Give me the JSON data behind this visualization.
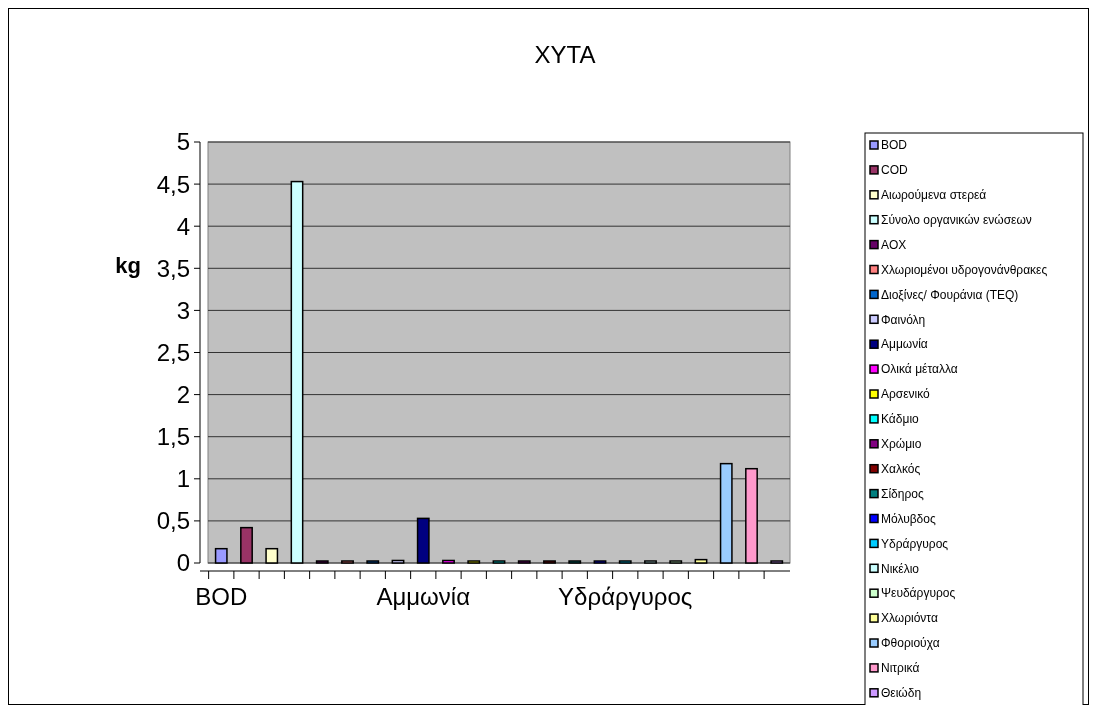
{
  "chart_data": {
    "type": "bar",
    "title": "ΧΥΤΑ",
    "ylabel": "kg",
    "categories": [
      "BOD",
      null,
      null,
      null,
      null,
      null,
      null,
      null,
      "Αμμωνία",
      null,
      null,
      null,
      null,
      null,
      null,
      null,
      "Υδράργυρος",
      null,
      null,
      null,
      null,
      null,
      null
    ],
    "series": [
      {
        "name": "BOD",
        "color": "#9999ff",
        "values": [
          0.17,
          null,
          null,
          null,
          null,
          null,
          null,
          null,
          null,
          null,
          null,
          null,
          null,
          null,
          null,
          null,
          null,
          null,
          null,
          null,
          null,
          null,
          null
        ]
      },
      {
        "name": "COD",
        "color": "#993366",
        "values": [
          null,
          0.42,
          null,
          null,
          null,
          null,
          null,
          null,
          null,
          null,
          null,
          null,
          null,
          null,
          null,
          null,
          null,
          null,
          null,
          null,
          null,
          null,
          null
        ]
      },
      {
        "name": "Αιωρούμενα στερεά",
        "color": "#ffffcc",
        "values": [
          null,
          null,
          0.17,
          null,
          null,
          null,
          null,
          null,
          null,
          null,
          null,
          null,
          null,
          null,
          null,
          null,
          null,
          null,
          null,
          null,
          null,
          null,
          null
        ]
      },
      {
        "name": "Σύνολο οργανικών ενώσεων",
        "color": "#ccffff",
        "values": [
          null,
          null,
          null,
          4.53,
          null,
          null,
          null,
          null,
          null,
          null,
          null,
          null,
          null,
          null,
          null,
          null,
          null,
          null,
          null,
          null,
          null,
          null,
          null
        ]
      },
      {
        "name": "AOX",
        "color": "#660066",
        "values": [
          null,
          null,
          null,
          null,
          0,
          null,
          null,
          null,
          null,
          null,
          null,
          null,
          null,
          null,
          null,
          null,
          null,
          null,
          null,
          null,
          null,
          null,
          null
        ]
      },
      {
        "name": "Χλωριομένοι υδρογονάνθρακες",
        "color": "#ff8080",
        "values": [
          null,
          null,
          null,
          null,
          null,
          0,
          null,
          null,
          null,
          null,
          null,
          null,
          null,
          null,
          null,
          null,
          null,
          null,
          null,
          null,
          null,
          null,
          null
        ]
      },
      {
        "name": "Διοξίνες/ Φουράνια (TEQ)",
        "color": "#0066cc",
        "values": [
          null,
          null,
          null,
          null,
          null,
          null,
          0,
          null,
          null,
          null,
          null,
          null,
          null,
          null,
          null,
          null,
          null,
          null,
          null,
          null,
          null,
          null,
          null
        ]
      },
      {
        "name": "Φαινόλη",
        "color": "#ccccff",
        "values": [
          null,
          null,
          null,
          null,
          null,
          null,
          null,
          0.03,
          null,
          null,
          null,
          null,
          null,
          null,
          null,
          null,
          null,
          null,
          null,
          null,
          null,
          null,
          null
        ]
      },
      {
        "name": "Αμμωνία",
        "color": "#000080",
        "values": [
          null,
          null,
          null,
          null,
          null,
          null,
          null,
          null,
          0.53,
          null,
          null,
          null,
          null,
          null,
          null,
          null,
          null,
          null,
          null,
          null,
          null,
          null,
          null
        ]
      },
      {
        "name": "Ολικά μέταλλα",
        "color": "#ff00ff",
        "values": [
          null,
          null,
          null,
          null,
          null,
          null,
          null,
          null,
          null,
          0.03,
          null,
          null,
          null,
          null,
          null,
          null,
          null,
          null,
          null,
          null,
          null,
          null,
          null
        ]
      },
      {
        "name": "Αρσενικό",
        "color": "#ffff00",
        "values": [
          null,
          null,
          null,
          null,
          null,
          null,
          null,
          null,
          null,
          null,
          0,
          null,
          null,
          null,
          null,
          null,
          null,
          null,
          null,
          null,
          null,
          null,
          null
        ]
      },
      {
        "name": "Κάδμιο",
        "color": "#00ffff",
        "values": [
          null,
          null,
          null,
          null,
          null,
          null,
          null,
          null,
          null,
          null,
          null,
          0,
          null,
          null,
          null,
          null,
          null,
          null,
          null,
          null,
          null,
          null,
          null
        ]
      },
      {
        "name": "Χρώμιο",
        "color": "#800080",
        "values": [
          null,
          null,
          null,
          null,
          null,
          null,
          null,
          null,
          null,
          null,
          null,
          null,
          0,
          null,
          null,
          null,
          null,
          null,
          null,
          null,
          null,
          null,
          null
        ]
      },
      {
        "name": "Χαλκός",
        "color": "#800000",
        "values": [
          null,
          null,
          null,
          null,
          null,
          null,
          null,
          null,
          null,
          null,
          null,
          null,
          null,
          0,
          null,
          null,
          null,
          null,
          null,
          null,
          null,
          null,
          null
        ]
      },
      {
        "name": "Σίδηρος",
        "color": "#008080",
        "values": [
          null,
          null,
          null,
          null,
          null,
          null,
          null,
          null,
          null,
          null,
          null,
          null,
          null,
          null,
          0,
          null,
          null,
          null,
          null,
          null,
          null,
          null,
          null
        ]
      },
      {
        "name": "Μόλυβδος",
        "color": "#0000ff",
        "values": [
          null,
          null,
          null,
          null,
          null,
          null,
          null,
          null,
          null,
          null,
          null,
          null,
          null,
          null,
          null,
          0,
          null,
          null,
          null,
          null,
          null,
          null,
          null
        ]
      },
      {
        "name": "Υδράργυρος",
        "color": "#00ccff",
        "values": [
          null,
          null,
          null,
          null,
          null,
          null,
          null,
          null,
          null,
          null,
          null,
          null,
          null,
          null,
          null,
          null,
          0,
          null,
          null,
          null,
          null,
          null,
          null
        ]
      },
      {
        "name": "Νικέλιο",
        "color": "#ccffff",
        "values": [
          null,
          null,
          null,
          null,
          null,
          null,
          null,
          null,
          null,
          null,
          null,
          null,
          null,
          null,
          null,
          null,
          null,
          0,
          null,
          null,
          null,
          null,
          null
        ]
      },
      {
        "name": "Ψευδάργυρος",
        "color": "#ccffcc",
        "values": [
          null,
          null,
          null,
          null,
          null,
          null,
          null,
          null,
          null,
          null,
          null,
          null,
          null,
          null,
          null,
          null,
          null,
          null,
          0,
          null,
          null,
          null,
          null
        ]
      },
      {
        "name": "Χλωριόντα",
        "color": "#ffff99",
        "values": [
          null,
          null,
          null,
          null,
          null,
          null,
          null,
          null,
          null,
          null,
          null,
          null,
          null,
          null,
          null,
          null,
          null,
          null,
          null,
          0.04,
          null,
          null,
          null
        ]
      },
      {
        "name": "Φθοριούχα",
        "color": "#99ccff",
        "values": [
          null,
          null,
          null,
          null,
          null,
          null,
          null,
          null,
          null,
          null,
          null,
          null,
          null,
          null,
          null,
          null,
          null,
          null,
          null,
          null,
          1.18,
          null,
          null
        ]
      },
      {
        "name": "Νιτρικά",
        "color": "#ff99cc",
        "values": [
          null,
          null,
          null,
          null,
          null,
          null,
          null,
          null,
          null,
          null,
          null,
          null,
          null,
          null,
          null,
          null,
          null,
          null,
          null,
          null,
          null,
          1.12,
          null
        ]
      },
      {
        "name": "Θειώδη",
        "color": "#cc99ff",
        "values": [
          null,
          null,
          null,
          null,
          null,
          null,
          null,
          null,
          null,
          null,
          null,
          null,
          null,
          null,
          null,
          null,
          null,
          null,
          null,
          null,
          null,
          null,
          0
        ]
      }
    ],
    "ylim": [
      0,
      5
    ],
    "yticks": [
      0,
      {
        "value": 0.5,
        "label": "0,5"
      },
      1,
      {
        "value": 1.5,
        "label": "1,5"
      },
      2,
      {
        "value": 2.5,
        "label": "2,5"
      },
      3,
      {
        "value": 3.5,
        "label": "3,5"
      },
      4,
      {
        "value": 4.5,
        "label": "4,5"
      },
      5
    ],
    "grid": "y",
    "legend": "right"
  }
}
